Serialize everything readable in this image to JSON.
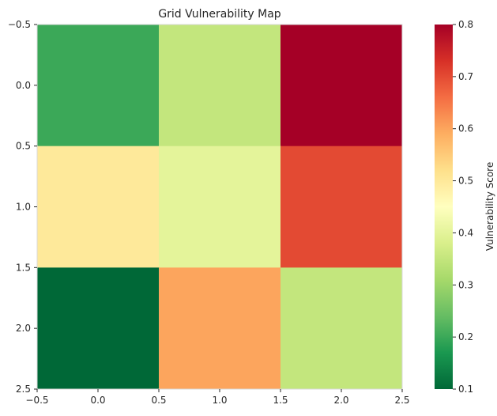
{
  "chart_data": {
    "type": "heatmap",
    "title": "Grid Vulnerability Map",
    "values": [
      [
        0.2,
        0.35,
        0.8
      ],
      [
        0.5,
        0.4,
        0.7
      ],
      [
        0.1,
        0.6,
        0.35
      ]
    ],
    "x_ticks": [
      "−0.5",
      "0.0",
      "0.5",
      "1.0",
      "1.5",
      "2.0",
      "2.5"
    ],
    "y_ticks": [
      "−0.5",
      "0.0",
      "0.5",
      "1.0",
      "1.5",
      "2.0",
      "2.5"
    ],
    "xlim": [
      -0.5,
      2.5
    ],
    "ylim": [
      2.5,
      -0.5
    ],
    "colorbar": {
      "label": "Vulnerability Score",
      "min": 0.1,
      "max": 0.8,
      "ticks": [
        "0.1",
        "0.2",
        "0.3",
        "0.4",
        "0.5",
        "0.6",
        "0.7",
        "0.8"
      ],
      "colormap": "RdYlGn_r"
    },
    "grid": false
  }
}
